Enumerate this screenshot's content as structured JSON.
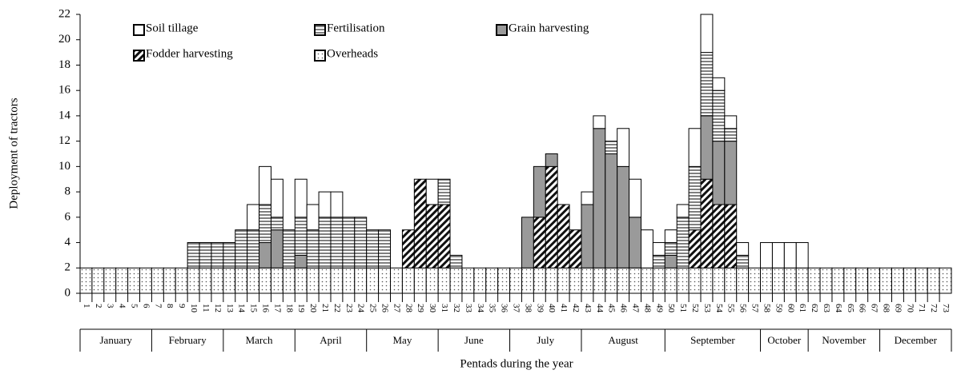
{
  "chart_data": {
    "type": "bar",
    "stacked": true,
    "xlabel": "Pentads during the year",
    "ylabel": "Deployment of tractors",
    "categories": [
      "1",
      "2",
      "3",
      "4",
      "5",
      "6",
      "7",
      "8",
      "9",
      "10",
      "11",
      "12",
      "13",
      "14",
      "15",
      "16",
      "17",
      "18",
      "19",
      "20",
      "21",
      "22",
      "23",
      "24",
      "25",
      "26",
      "27",
      "28",
      "29",
      "30",
      "31",
      "32",
      "33",
      "34",
      "35",
      "36",
      "37",
      "38",
      "39",
      "40",
      "41",
      "42",
      "43",
      "44",
      "45",
      "46",
      "47",
      "48",
      "49",
      "50",
      "51",
      "52",
      "53",
      "54",
      "55",
      "56",
      "57",
      "58",
      "59",
      "60",
      "61",
      "62",
      "63",
      "64",
      "65",
      "66",
      "67",
      "68",
      "69",
      "70",
      "71",
      "72",
      "73"
    ],
    "months": [
      "January",
      "February",
      "March",
      "April",
      "May",
      "June",
      "July",
      "August",
      "September",
      "October",
      "November",
      "December"
    ],
    "ylim": [
      0,
      22
    ],
    "yticks": [
      0,
      2,
      4,
      6,
      8,
      10,
      12,
      14,
      16,
      18,
      20,
      22
    ],
    "grid": false,
    "series": [
      {
        "name": "Soil tillage",
        "color": "#ffffff",
        "values": [
          0,
          0,
          0,
          0,
          0,
          0,
          0,
          0,
          0,
          0,
          0,
          0,
          0,
          0,
          2,
          3,
          3,
          0,
          3,
          2,
          2,
          2,
          0,
          0,
          0,
          0,
          0,
          0,
          0,
          2,
          0,
          0,
          0,
          0,
          0,
          0,
          0,
          0,
          0,
          0,
          0,
          0,
          1,
          1,
          0,
          3,
          3,
          3,
          1,
          1,
          1,
          3,
          3,
          1,
          1,
          1,
          0,
          2,
          2,
          2,
          2,
          0,
          0,
          0,
          0,
          0,
          0,
          0,
          0,
          0,
          0,
          0,
          0
        ]
      },
      {
        "name": "Fertilisation",
        "color": "#808080",
        "values": [
          0,
          0,
          0,
          0,
          0,
          0,
          0,
          0,
          0,
          2,
          2,
          2,
          2,
          3,
          3,
          3,
          1,
          3,
          3,
          3,
          4,
          4,
          4,
          4,
          3,
          3,
          0,
          0,
          0,
          0,
          2,
          1,
          0,
          0,
          0,
          0,
          0,
          0,
          0,
          0,
          0,
          0,
          0,
          0,
          1,
          0,
          0,
          0,
          1,
          1,
          4,
          5,
          5,
          4,
          1,
          1,
          0,
          0,
          0,
          0,
          0,
          0,
          0,
          0,
          0,
          0,
          0,
          0,
          0,
          0,
          0,
          0,
          0
        ]
      },
      {
        "name": "Grain harvesting",
        "color": "#9a9a9a",
        "values": [
          0,
          0,
          0,
          0,
          0,
          0,
          0,
          0,
          0,
          0,
          0,
          0,
          0,
          0,
          0,
          2,
          3,
          0,
          1,
          0,
          0,
          0,
          0,
          0,
          0,
          0,
          0,
          0,
          0,
          0,
          0,
          0,
          0,
          0,
          0,
          0,
          0,
          4,
          4,
          1,
          0,
          0,
          5,
          11,
          9,
          8,
          4,
          0,
          0,
          1,
          0,
          0,
          5,
          5,
          5,
          0,
          0,
          0,
          0,
          0,
          0,
          0,
          0,
          0,
          0,
          0,
          0,
          0,
          0,
          0,
          0,
          0,
          0
        ]
      },
      {
        "name": "Fodder harvesting",
        "color": "#111111",
        "values": [
          0,
          0,
          0,
          0,
          0,
          0,
          0,
          0,
          0,
          0,
          0,
          0,
          0,
          0,
          0,
          0,
          0,
          0,
          0,
          0,
          0,
          0,
          0,
          0,
          0,
          0,
          0,
          3,
          7,
          5,
          5,
          0,
          0,
          0,
          0,
          0,
          0,
          0,
          4,
          8,
          5,
          3,
          0,
          0,
          0,
          0,
          0,
          0,
          0,
          0,
          0,
          3,
          7,
          5,
          5,
          0,
          0,
          0,
          0,
          0,
          0,
          0,
          0,
          0,
          0,
          0,
          0,
          0,
          0,
          0,
          0,
          0,
          0
        ]
      },
      {
        "name": "Overheads",
        "color": "#555555",
        "values": [
          2,
          2,
          2,
          2,
          2,
          2,
          2,
          2,
          2,
          2,
          2,
          2,
          2,
          2,
          2,
          2,
          2,
          2,
          2,
          2,
          2,
          2,
          2,
          2,
          2,
          2,
          2,
          2,
          2,
          2,
          2,
          2,
          2,
          2,
          2,
          2,
          2,
          2,
          2,
          2,
          2,
          2,
          2,
          2,
          2,
          2,
          2,
          2,
          2,
          2,
          2,
          2,
          2,
          2,
          2,
          2,
          2,
          2,
          2,
          2,
          2,
          2,
          2,
          2,
          2,
          2,
          2,
          2,
          2,
          2,
          2,
          2,
          2
        ]
      }
    ]
  }
}
